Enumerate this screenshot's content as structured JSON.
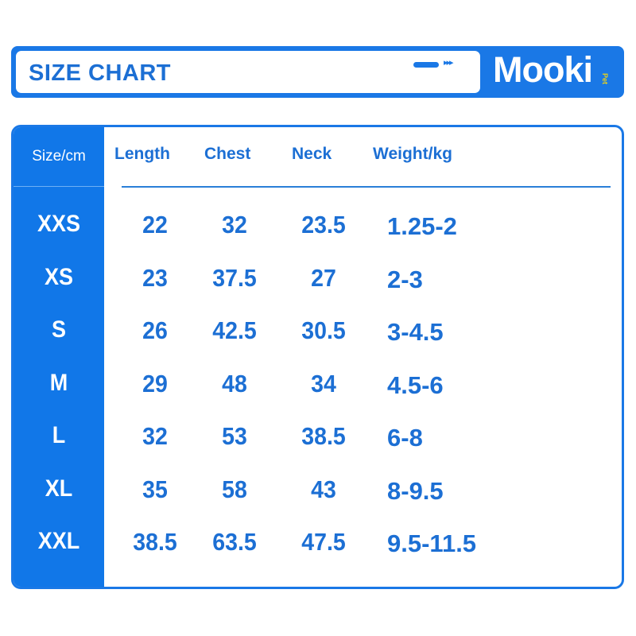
{
  "header": {
    "title": "SIZE CHART",
    "arrows": "▸▸▸",
    "logo": "Mooki",
    "logo_sub": "Pet"
  },
  "colors": {
    "primary": "#1a78e6",
    "text": "#1c6fd4",
    "logo_accent": "#e8d11a"
  },
  "table": {
    "corner": "Size/cm",
    "columns": [
      "Length",
      "Chest",
      "Neck",
      "Weight/kg"
    ],
    "rows": [
      {
        "size": "XXS",
        "length": "22",
        "chest": "32",
        "neck": "23.5",
        "weight": "1.25-2"
      },
      {
        "size": "XS",
        "length": "23",
        "chest": "37.5",
        "neck": "27",
        "weight": "2-3"
      },
      {
        "size": "S",
        "length": "26",
        "chest": "42.5",
        "neck": "30.5",
        "weight": "3-4.5"
      },
      {
        "size": "M",
        "length": "29",
        "chest": "48",
        "neck": "34",
        "weight": "4.5-6"
      },
      {
        "size": "L",
        "length": "32",
        "chest": "53",
        "neck": "38.5",
        "weight": "6-8"
      },
      {
        "size": "XL",
        "length": "35",
        "chest": "58",
        "neck": "43",
        "weight": "8-9.5"
      },
      {
        "size": "XXL",
        "length": "38.5",
        "chest": "63.5",
        "neck": "47.5",
        "weight": "9.5-11.5"
      }
    ]
  }
}
